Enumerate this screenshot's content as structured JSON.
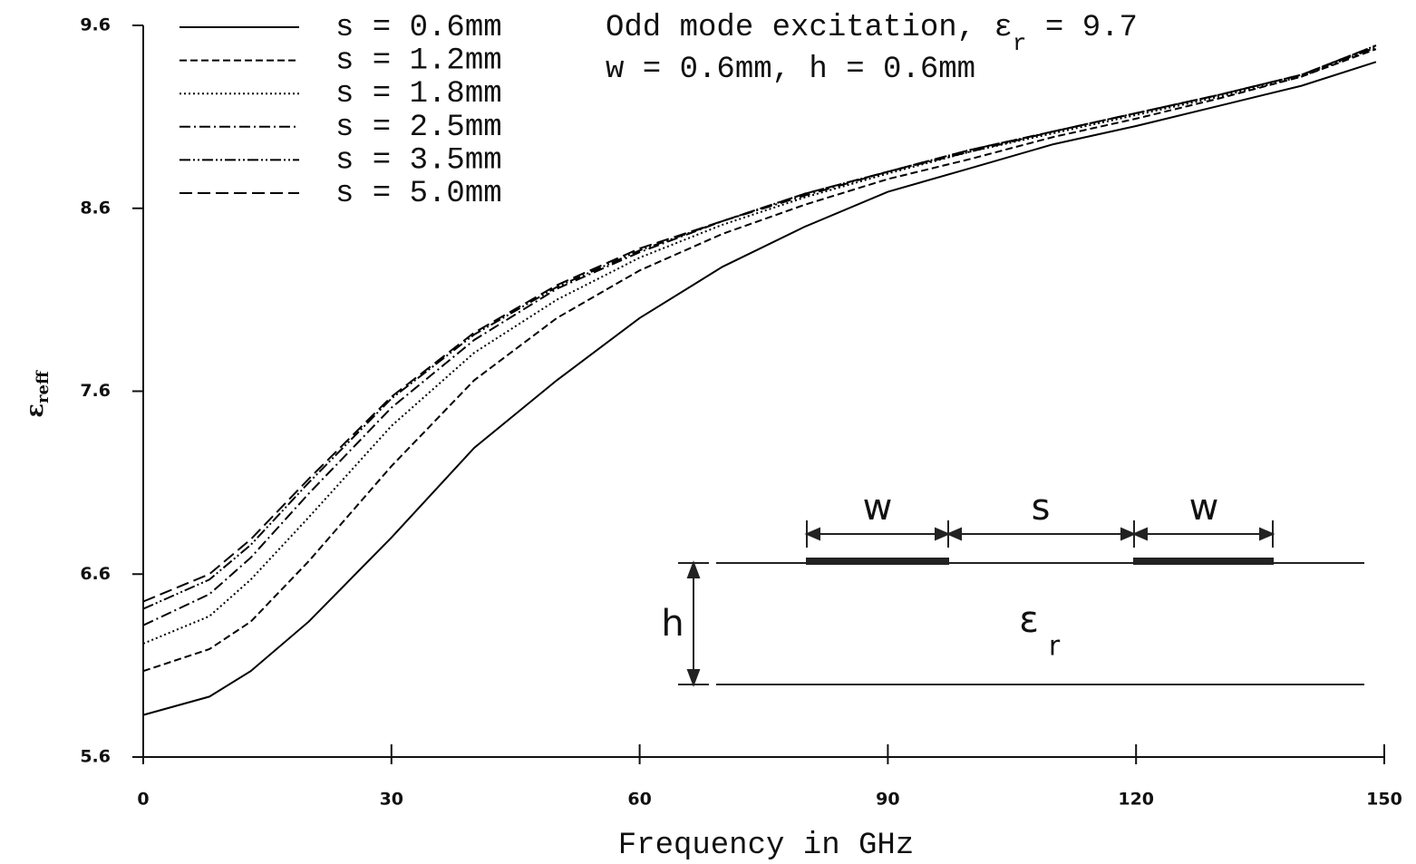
{
  "chart_data": {
    "type": "line",
    "xlabel": "Frequency in GHz",
    "ylabel": {
      "symbol": "ε",
      "sub": "reff"
    },
    "annotation": [
      {
        "text": "Odd mode excitation, ε",
        "sub": "r",
        "after": " = 9.7"
      },
      {
        "text": "w = 0.6mm, h = 0.6mm"
      }
    ],
    "inset": {
      "w1": "w",
      "s": "s",
      "w2": "w",
      "h": "h",
      "eps": "ε",
      "eps_sub": "r"
    },
    "x": [
      0,
      8,
      13,
      20,
      30,
      40,
      50,
      60,
      70,
      80,
      90,
      100,
      110,
      120,
      130,
      140,
      149
    ],
    "series": [
      {
        "name": "s = 0.6mm",
        "color": "#000000",
        "dash": "none",
        "values": [
          5.83,
          5.93,
          6.07,
          6.34,
          6.8,
          7.29,
          7.66,
          8.0,
          8.28,
          8.5,
          8.69,
          8.82,
          8.95,
          9.05,
          9.16,
          9.27,
          9.4
        ]
      },
      {
        "name": "s = 1.2mm",
        "color": "#000000",
        "dash": "8,4",
        "values": [
          6.07,
          6.19,
          6.34,
          6.67,
          7.19,
          7.66,
          8.0,
          8.26,
          8.46,
          8.62,
          8.76,
          8.87,
          8.99,
          9.09,
          9.2,
          9.32,
          9.47
        ]
      },
      {
        "name": "s = 1.8mm",
        "color": "#000000",
        "dash": "2,3",
        "values": [
          6.22,
          6.37,
          6.57,
          6.91,
          7.41,
          7.81,
          8.1,
          8.33,
          8.51,
          8.66,
          8.79,
          8.91,
          9.01,
          9.11,
          9.21,
          9.32,
          9.48
        ]
      },
      {
        "name": "s = 2.5mm",
        "color": "#000000",
        "dash": "12,4,2,4",
        "values": [
          6.32,
          6.49,
          6.69,
          7.04,
          7.51,
          7.88,
          8.16,
          8.36,
          8.53,
          8.67,
          8.8,
          8.91,
          9.02,
          9.12,
          9.22,
          9.33,
          9.48
        ]
      },
      {
        "name": "s = 3.5mm",
        "color": "#000000",
        "dash": "12,3,2,3,2,3",
        "values": [
          6.41,
          6.57,
          6.76,
          7.1,
          7.56,
          7.91,
          8.17,
          8.37,
          8.53,
          8.68,
          8.8,
          8.92,
          9.02,
          9.12,
          9.22,
          9.33,
          9.49
        ]
      },
      {
        "name": "s = 5.0mm",
        "color": "#000000",
        "dash": "14,6",
        "values": [
          6.45,
          6.6,
          6.79,
          7.12,
          7.57,
          7.92,
          8.18,
          8.38,
          8.53,
          8.68,
          8.8,
          8.92,
          9.02,
          9.12,
          9.22,
          9.33,
          9.49
        ]
      }
    ],
    "xlim": [
      0,
      150
    ],
    "xticks": [
      0,
      30,
      60,
      90,
      120,
      150
    ],
    "ylim": [
      5.6,
      9.6
    ],
    "yticks": [
      5.6,
      6.6,
      7.6,
      8.6,
      9.6
    ],
    "grid": false,
    "legend": "upper left"
  }
}
